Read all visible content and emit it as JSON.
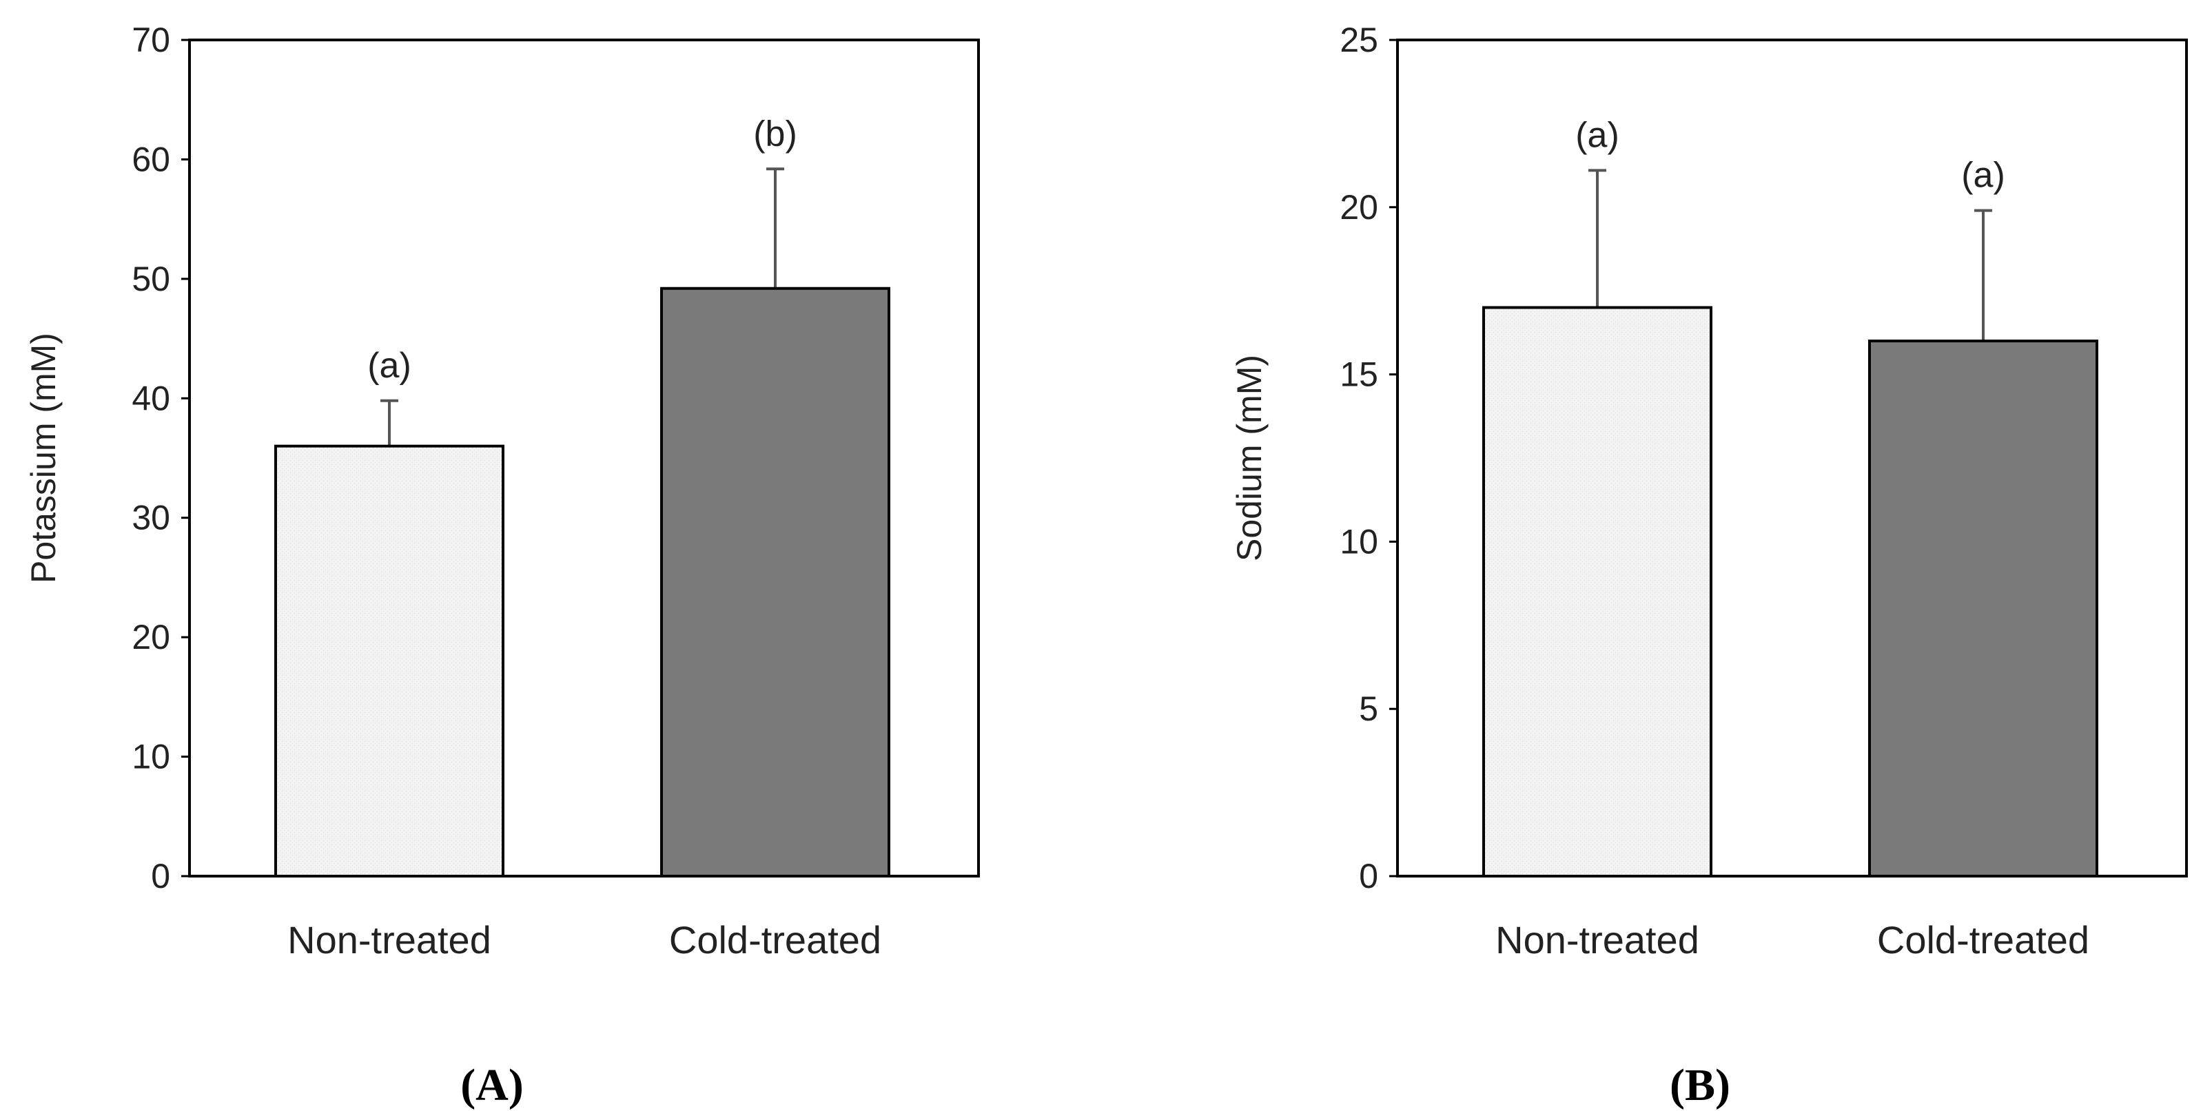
{
  "chart_data": [
    {
      "type": "bar",
      "panel_label": "(A)",
      "ylabel": "Potassium (mM)",
      "xlabel": "",
      "ylim": [
        0,
        70
      ],
      "yticks": [
        0,
        10,
        20,
        30,
        40,
        50,
        60,
        70
      ],
      "categories": [
        "Non-treated",
        "Cold-treated"
      ],
      "values": [
        36,
        49.2
      ],
      "errors": [
        3.8,
        10
      ],
      "significance": [
        "(a)",
        "(b)"
      ],
      "bar_colors": [
        "#f2f2f2",
        "#7a7a7a"
      ],
      "grid": false,
      "legend": "none"
    },
    {
      "type": "bar",
      "panel_label": "(B)",
      "ylabel": "Sodium (mM)",
      "xlabel": "",
      "ylim": [
        0,
        25
      ],
      "yticks": [
        0,
        5,
        10,
        15,
        20,
        25
      ],
      "categories": [
        "Non-treated",
        "Cold-treated"
      ],
      "values": [
        17,
        16
      ],
      "errors": [
        4.1,
        3.9
      ],
      "significance": [
        "(a)",
        "(a)"
      ],
      "bar_colors": [
        "#f2f2f2",
        "#7a7a7a"
      ],
      "grid": false,
      "legend": "none"
    }
  ]
}
